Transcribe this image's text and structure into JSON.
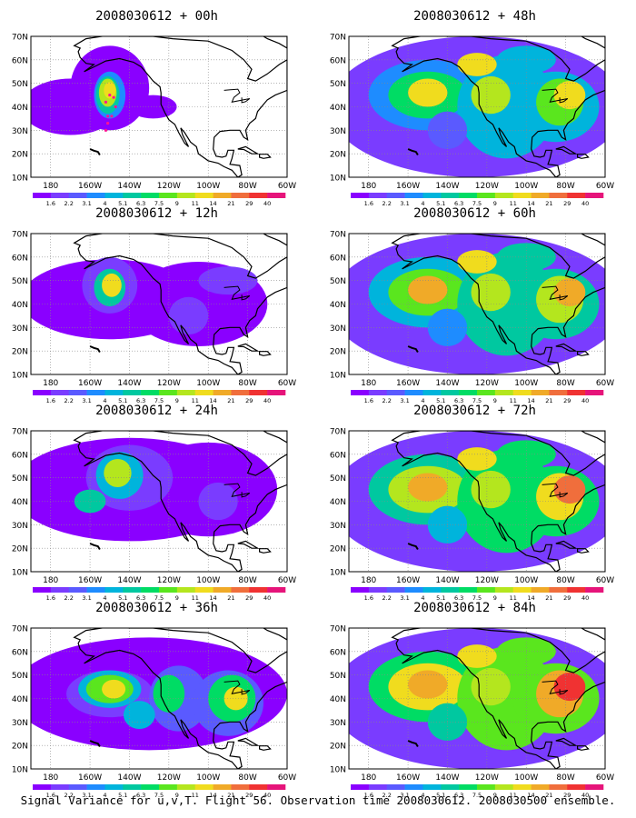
{
  "map": {
    "lat_ticks": [
      "70N",
      "60N",
      "50N",
      "40N",
      "30N",
      "20N",
      "10N"
    ],
    "lon_ticks": [
      "180",
      "160W",
      "140W",
      "120W",
      "100W",
      "80W",
      "60W"
    ],
    "extent": {
      "lon_min": -190,
      "lon_max": -60,
      "lat_min": 10,
      "lat_max": 70
    },
    "gridlines": "dotted"
  },
  "colorbar": {
    "labels": [
      "1.6",
      "2.2",
      "3.1",
      "4",
      "5.1",
      "6.3",
      "7.5",
      "9",
      "11",
      "14",
      "21",
      "29",
      "40"
    ],
    "colors": [
      "#8a00ff",
      "#7a3cff",
      "#5a5aff",
      "#1e8cff",
      "#00b4dc",
      "#00c8a0",
      "#00dc64",
      "#5ae61e",
      "#b4e61e",
      "#f0dc1e",
      "#f0aa28",
      "#f06e3c",
      "#f03232",
      "#e6147a"
    ]
  },
  "panels": [
    {
      "title": "2008030612 + 00h",
      "intensity": 0
    },
    {
      "title": "2008030612 + 48h",
      "intensity": 4
    },
    {
      "title": "2008030612 + 12h",
      "intensity": 1
    },
    {
      "title": "2008030612 + 60h",
      "intensity": 5
    },
    {
      "title": "2008030612 + 24h",
      "intensity": 2
    },
    {
      "title": "2008030612 + 72h",
      "intensity": 6
    },
    {
      "title": "2008030612 + 36h",
      "intensity": 3
    },
    {
      "title": "2008030612 + 84h",
      "intensity": 7
    }
  ],
  "footer": "Signal Variance for u,v,T. Flight 56. Observation time 2008030612. 2008030500 ensemble."
}
